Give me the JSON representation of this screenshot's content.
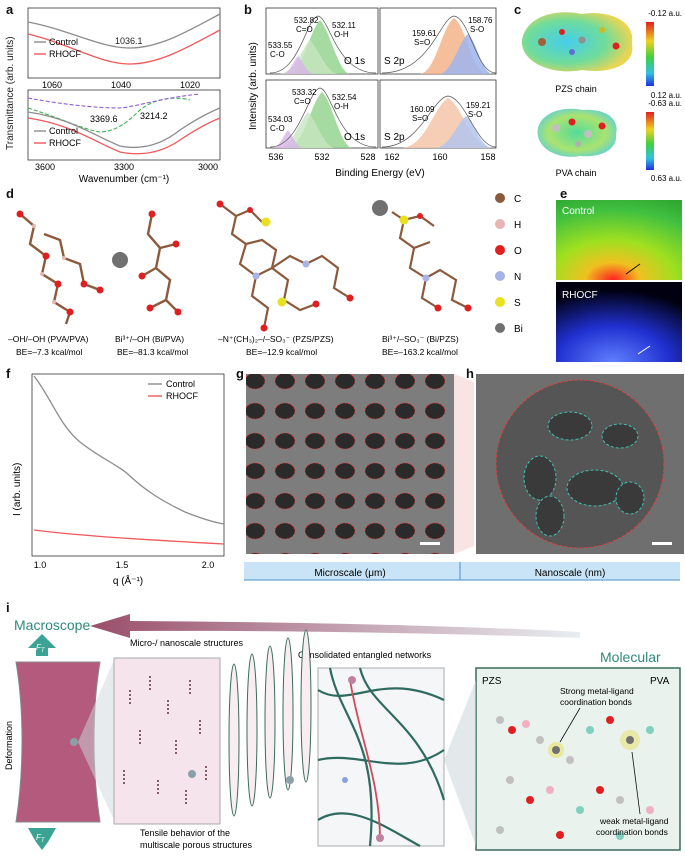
{
  "panel_letters": [
    "a",
    "b",
    "c",
    "d",
    "e",
    "f",
    "g",
    "h",
    "i"
  ],
  "panel_a": {
    "ylabel": "Transmittance (arb. units)",
    "xlabel": "Wavenumber (cm⁻¹)",
    "legend": [
      "Control",
      "RHOCF"
    ],
    "top": {
      "ticks": [
        "1060",
        "1040",
        "1020"
      ],
      "annotation": "1036.1"
    },
    "bottom": {
      "ticks": [
        "3600",
        "3300",
        "3000"
      ],
      "annotations": [
        "3369.6",
        "3214.2"
      ]
    },
    "colors": {
      "control": "#8c8c8c",
      "rhocf": "#f0585a",
      "green": "#3cb44b",
      "purple": "#8e5bd6"
    }
  },
  "panel_b": {
    "ylabel": "Intensity (arb. units)",
    "xlabel": "Binding Energy (eV)",
    "ticks": [
      "536",
      "532",
      "528",
      "162",
      "160",
      "158"
    ],
    "top": {
      "o_peaks": [
        {
          "value": "532.82",
          "label": "C=O"
        },
        {
          "value": "532.11",
          "label": "O-H"
        },
        {
          "value": "533.55",
          "label": "C-O"
        }
      ],
      "o_label": "O 1s",
      "s_peaks": [
        {
          "value": "159.61",
          "label": "S=O"
        },
        {
          "value": "158.76",
          "label": "S-O"
        }
      ],
      "s_label": "S 2p"
    },
    "bottom": {
      "o_peaks": [
        {
          "value": "533.32",
          "label": "C=O"
        },
        {
          "value": "532.54",
          "label": "O-H"
        },
        {
          "value": "534.03",
          "label": "C-O"
        }
      ],
      "o_label": "O 1s",
      "s_peaks": [
        {
          "value": "160.09",
          "label": "S=O"
        },
        {
          "value": "159.21",
          "label": "S-O"
        }
      ],
      "s_label": "S 2p"
    }
  },
  "panel_c": {
    "pzs": {
      "name": "PZS chain",
      "max": "-0.12 a.u.",
      "min": "0.12 a.u."
    },
    "pva": {
      "name": "PVA chain",
      "max": "-0.63 a.u.",
      "min": "0.63 a.u."
    }
  },
  "panel_d": {
    "structures": [
      {
        "label": "–OH/–OH (PVA/PVA)",
        "be": "BE=–7.3 kcal/mol"
      },
      {
        "label": "Bi³⁺/–OH (Bi/PVA)",
        "be": "BE=–81.3 kcal/mol"
      },
      {
        "label": "–N⁺(CH₃)₂–/–SO₃⁻ (PZS/PZS)",
        "be": "BE=–12.9 kcal/mol"
      },
      {
        "label": "Bi³⁺/–SO₃⁻ (Bi/PZS)",
        "be": "BE=–163.2 kcal/mol"
      }
    ],
    "legend": [
      {
        "symbol": "C",
        "color": "#8b5a3c"
      },
      {
        "symbol": "H",
        "color": "#e8b4b4"
      },
      {
        "symbol": "O",
        "color": "#e02020"
      },
      {
        "symbol": "N",
        "color": "#a8b4e8"
      },
      {
        "symbol": "S",
        "color": "#e8e020"
      },
      {
        "symbol": "Bi",
        "color": "#707070"
      }
    ]
  },
  "panel_e": {
    "control_label": "Control",
    "rhocf_label": "RHOCF"
  },
  "panel_f": {
    "ylabel": "I (arb. units)",
    "xlabel": "q (Å⁻¹)",
    "legend": [
      "Control",
      "RHOCF"
    ],
    "ticks": [
      "1.0",
      "1.5",
      "2.0"
    ]
  },
  "panel_gh": {
    "micro": "Microscale (μm)",
    "nano": "Nanoscale (nm)"
  },
  "panel_i": {
    "macroscope": "Macroscope",
    "molecular": "Molecular",
    "ft": "F",
    "ft_sub": "T",
    "deformation": "Deformation",
    "micro_nano": "Micro-/ nanoscale structures",
    "consolidated": "Consolidated entangled networks",
    "tensile_line1": "Tensile behavior of the",
    "tensile_line2": "multiscale porous structures",
    "pzs": "PZS",
    "pva": "PVA",
    "strong_line1": "Strong metal-ligand",
    "strong_line2": "coordination bonds",
    "weak_line1": "weak metal-ligand",
    "weak_line2": "coordination bonds"
  }
}
